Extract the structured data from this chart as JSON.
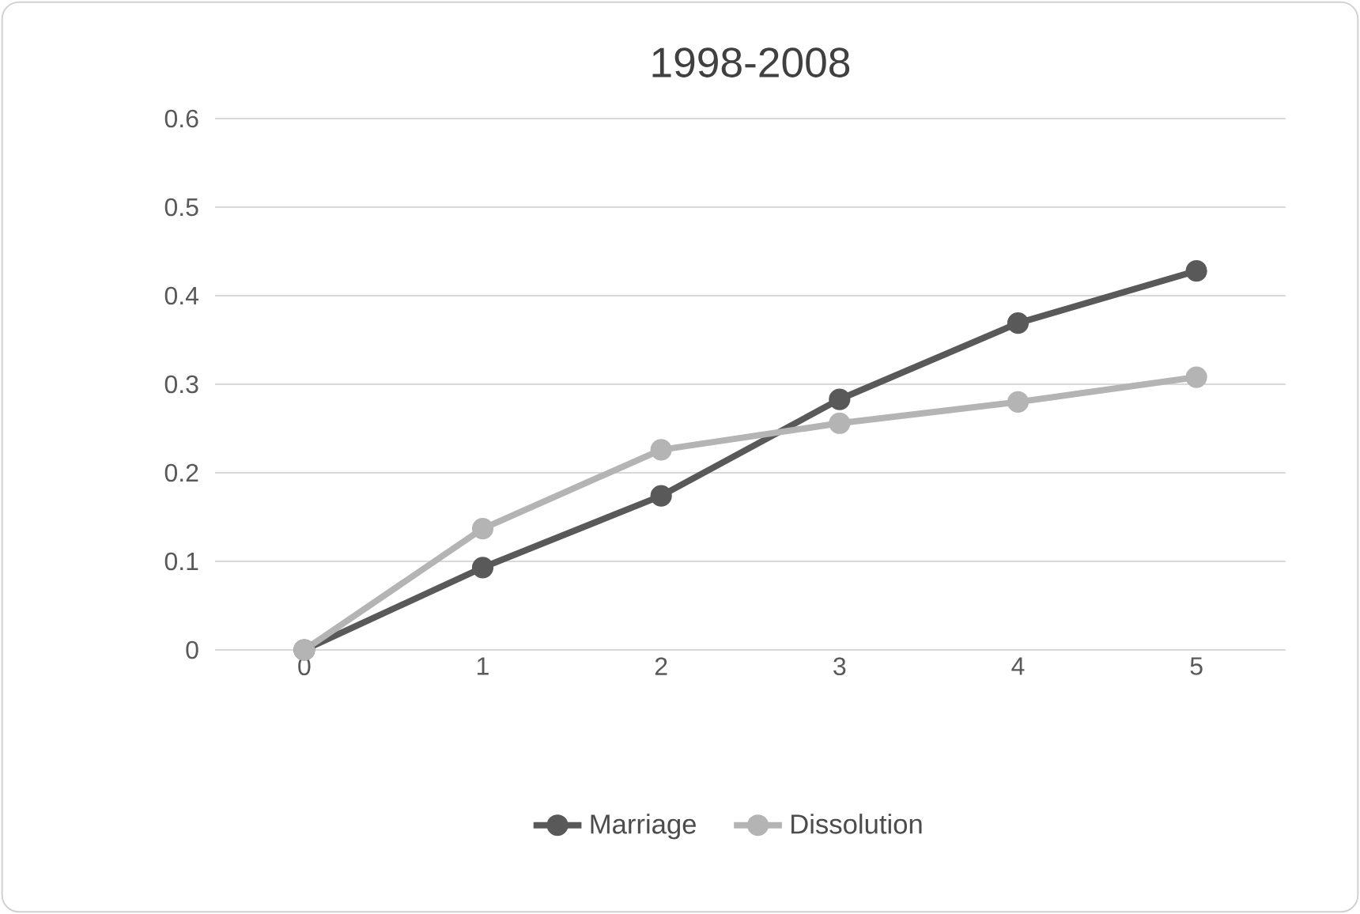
{
  "chart_data": {
    "type": "line",
    "title": "1998-2008",
    "categories": [
      "0",
      "1",
      "2",
      "3",
      "4",
      "5"
    ],
    "series": [
      {
        "name": "Marriage",
        "color": "#595959",
        "values": [
          0,
          0.093,
          0.174,
          0.283,
          0.369,
          0.428
        ]
      },
      {
        "name": "Dissolution",
        "color": "#b4b4b4",
        "values": [
          0,
          0.137,
          0.226,
          0.256,
          0.28,
          0.308
        ]
      }
    ],
    "ylim": [
      0,
      0.6
    ],
    "yticks": [
      0,
      0.1,
      0.2,
      0.3,
      0.4,
      0.5,
      0.6
    ],
    "grid": "y",
    "legend": "bottom",
    "marker": "circle",
    "line_style": "solid"
  }
}
